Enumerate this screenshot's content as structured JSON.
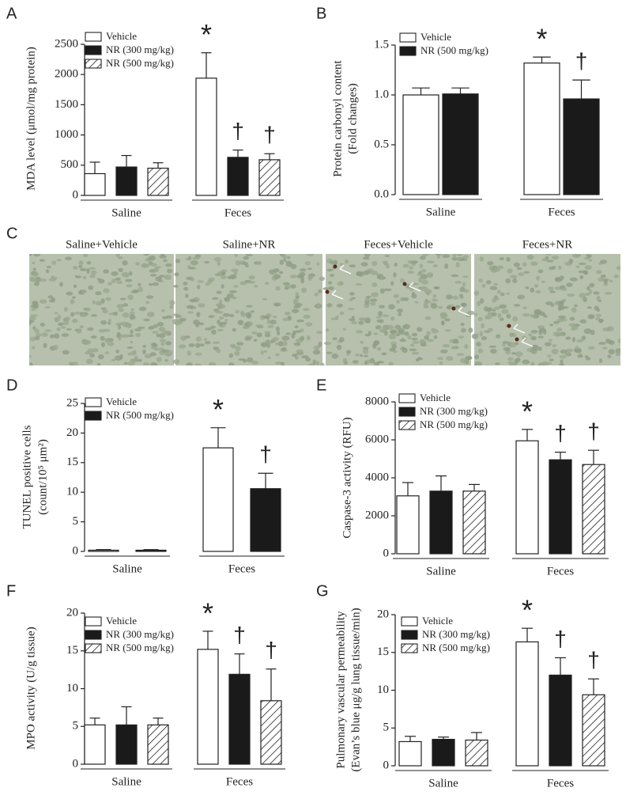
{
  "chart_data": [
    {
      "type": "bar",
      "panel": "A",
      "ylabel": [
        "MDA level (μmol/mg protein)"
      ],
      "categories": [
        "Saline",
        "Feces"
      ],
      "ylim": [
        0,
        2500
      ],
      "yticks": [
        0,
        500,
        1000,
        1500,
        2000,
        2500
      ],
      "series": [
        {
          "name": "Vehicle",
          "color": "#ffffff",
          "hatch": false,
          "values": [
            360,
            1940
          ],
          "errors": [
            190,
            420
          ],
          "annotations": [
            null,
            "*"
          ]
        },
        {
          "name": "NR (300 mg/kg)",
          "color": "#1a1a1a",
          "hatch": false,
          "values": [
            470,
            630
          ],
          "errors": [
            190,
            120
          ],
          "annotations": [
            null,
            "†"
          ]
        },
        {
          "name": "NR (500 mg/kg)",
          "color": "#ffffff",
          "hatch": true,
          "values": [
            450,
            590
          ],
          "errors": [
            90,
            100
          ],
          "annotations": [
            null,
            "†"
          ]
        }
      ]
    },
    {
      "type": "bar",
      "panel": "B",
      "ylabel": [
        "Protein carbonyl content",
        "(Fold changes)"
      ],
      "categories": [
        "Saline",
        "Feces"
      ],
      "ylim": [
        0,
        1.5
      ],
      "yticks": [
        {
          "value": 0,
          "label": "0.0"
        },
        0.5,
        {
          "value": 1,
          "label": "1.0"
        },
        1.5
      ],
      "series": [
        {
          "name": "Vehicle",
          "color": "#ffffff",
          "hatch": false,
          "values": [
            1.0,
            1.32
          ],
          "errors": [
            0.07,
            0.06
          ],
          "annotations": [
            null,
            "*"
          ]
        },
        {
          "name": "NR (500 mg/kg)",
          "color": "#1a1a1a",
          "hatch": false,
          "values": [
            1.01,
            0.96
          ],
          "errors": [
            0.06,
            0.19
          ],
          "annotations": [
            null,
            "†"
          ]
        }
      ]
    },
    {
      "type": "bar",
      "panel": "D",
      "ylabel": [
        "TUNEL positive cells",
        "(count/10⁵ μm²)"
      ],
      "categories": [
        "Saline",
        "Feces"
      ],
      "ylim": [
        0,
        25
      ],
      "yticks": [
        0,
        5,
        10,
        15,
        20,
        25
      ],
      "series": [
        {
          "name": "Vehicle",
          "color": "#ffffff",
          "hatch": false,
          "values": [
            0.2,
            17.5
          ],
          "errors": [
            0.1,
            3.4
          ],
          "annotations": [
            null,
            "*"
          ]
        },
        {
          "name": "NR (500 mg/kg)",
          "color": "#1a1a1a",
          "hatch": false,
          "values": [
            0.2,
            10.6
          ],
          "errors": [
            0.1,
            2.6
          ],
          "annotations": [
            null,
            "†"
          ]
        }
      ]
    },
    {
      "type": "bar",
      "panel": "E",
      "ylabel": [
        "Caspase-3 activity (RFU)"
      ],
      "categories": [
        "Saline",
        "Feces"
      ],
      "ylim": [
        0,
        8000
      ],
      "yticks": [
        0,
        2000,
        4000,
        6000,
        8000
      ],
      "series": [
        {
          "name": "Vehicle",
          "color": "#ffffff",
          "hatch": false,
          "values": [
            3050,
            5950
          ],
          "errors": [
            700,
            600
          ],
          "annotations": [
            null,
            "*"
          ]
        },
        {
          "name": "NR (300 mg/kg)",
          "color": "#1a1a1a",
          "hatch": false,
          "values": [
            3300,
            4950
          ],
          "errors": [
            800,
            400
          ],
          "annotations": [
            null,
            "†"
          ]
        },
        {
          "name": "NR (500 mg/kg)",
          "color": "#ffffff",
          "hatch": true,
          "values": [
            3300,
            4700
          ],
          "errors": [
            350,
            750
          ],
          "annotations": [
            null,
            "†"
          ]
        }
      ]
    },
    {
      "type": "bar",
      "panel": "F",
      "ylabel": [
        "MPO activity (U/g tissue)"
      ],
      "categories": [
        "Saline",
        "Feces"
      ],
      "ylim": [
        0,
        20
      ],
      "yticks": [
        0,
        5,
        10,
        15,
        20
      ],
      "series": [
        {
          "name": "Vehicle",
          "color": "#ffffff",
          "hatch": false,
          "values": [
            5.2,
            15.2
          ],
          "errors": [
            0.9,
            2.4
          ],
          "annotations": [
            null,
            "*"
          ]
        },
        {
          "name": "NR (300 mg/kg)",
          "color": "#1a1a1a",
          "hatch": false,
          "values": [
            5.2,
            11.9
          ],
          "errors": [
            2.4,
            2.7
          ],
          "annotations": [
            null,
            "†"
          ]
        },
        {
          "name": "NR (500 mg/kg)",
          "color": "#ffffff",
          "hatch": true,
          "values": [
            5.2,
            8.4
          ],
          "errors": [
            0.9,
            4.2
          ],
          "annotations": [
            null,
            "†"
          ]
        }
      ]
    },
    {
      "type": "bar",
      "panel": "G",
      "ylabel": [
        "Pulmonary vascular permeability",
        "(Evan’s blue μg/g lung tissue/min)"
      ],
      "categories": [
        "Saline",
        "Feces"
      ],
      "ylim": [
        0,
        20
      ],
      "yticks": [
        0,
        5,
        10,
        15,
        20
      ],
      "series": [
        {
          "name": "Vehicle",
          "color": "#ffffff",
          "hatch": false,
          "values": [
            3.2,
            16.4
          ],
          "errors": [
            0.7,
            1.8
          ],
          "annotations": [
            null,
            "*"
          ]
        },
        {
          "name": "NR (300 mg/kg)",
          "color": "#1a1a1a",
          "hatch": false,
          "values": [
            3.5,
            12.0
          ],
          "errors": [
            0.3,
            2.3
          ],
          "annotations": [
            null,
            "†"
          ]
        },
        {
          "name": "NR (500 mg/kg)",
          "color": "#ffffff",
          "hatch": true,
          "values": [
            3.4,
            9.4
          ],
          "errors": [
            1.0,
            2.1
          ],
          "annotations": [
            null,
            "†"
          ]
        }
      ]
    }
  ],
  "micrographs": {
    "panel": "C",
    "titles": [
      "Saline+Vehicle",
      "Saline+NR",
      "Feces+Vehicle",
      "Feces+NR"
    ]
  }
}
